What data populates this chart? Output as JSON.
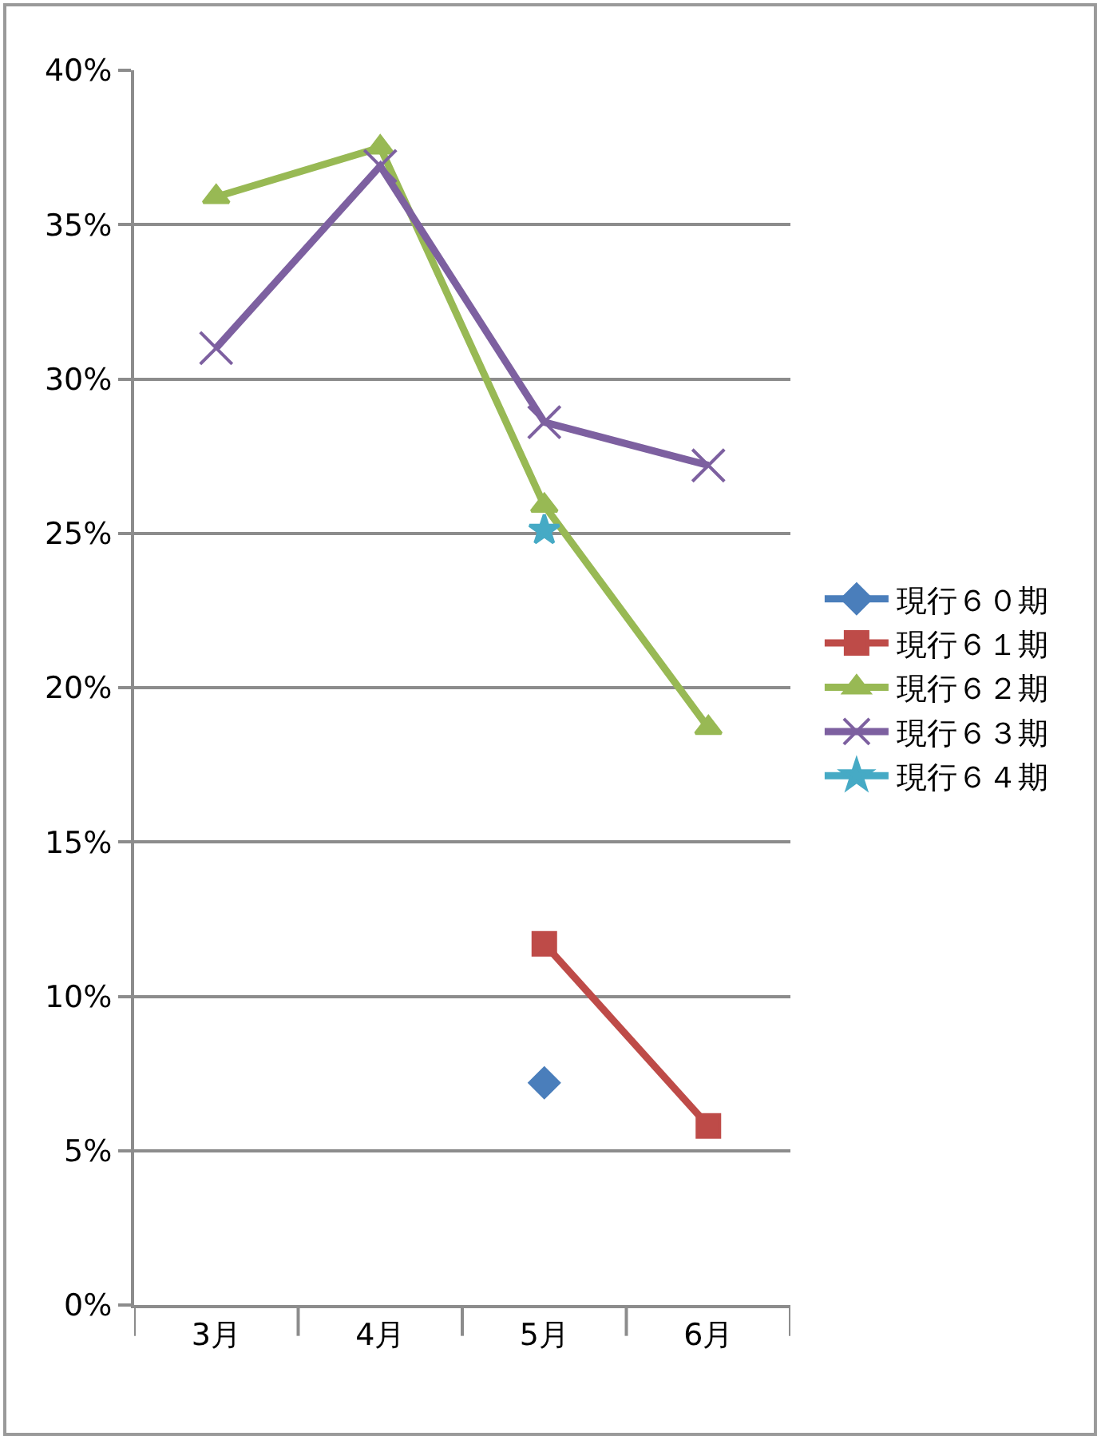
{
  "chart_data": {
    "type": "line",
    "categories": [
      "3月",
      "4月",
      "5月",
      "6月"
    ],
    "series": [
      {
        "name": "現行６０期",
        "color": "#4a7ebb",
        "marker": "diamond",
        "values": [
          null,
          null,
          7.2,
          null
        ]
      },
      {
        "name": "現行６１期",
        "color": "#be4b48",
        "marker": "square",
        "values": [
          null,
          null,
          11.7,
          5.8
        ]
      },
      {
        "name": "現行６２期",
        "color": "#98b954",
        "marker": "triangle",
        "values": [
          35.9,
          37.5,
          25.9,
          18.7
        ]
      },
      {
        "name": "現行６３期",
        "color": "#7d60a0",
        "marker": "cross",
        "values": [
          31.0,
          36.9,
          28.6,
          27.2
        ]
      },
      {
        "name": "現行６４期",
        "color": "#46aac5",
        "marker": "star",
        "values": [
          null,
          null,
          25.1,
          null
        ]
      }
    ],
    "ylim": [
      0,
      40
    ],
    "yticks": [
      {
        "value": 0,
        "label": "0%"
      },
      {
        "value": 5,
        "label": "5%"
      },
      {
        "value": 10,
        "label": "10%"
      },
      {
        "value": 15,
        "label": "15%"
      },
      {
        "value": 20,
        "label": "20%"
      },
      {
        "value": 25,
        "label": "25%"
      },
      {
        "value": 30,
        "label": "30%"
      },
      {
        "value": 35,
        "label": "35%"
      },
      {
        "value": 40,
        "label": "40%"
      }
    ],
    "grid": "y",
    "legend": "right"
  }
}
